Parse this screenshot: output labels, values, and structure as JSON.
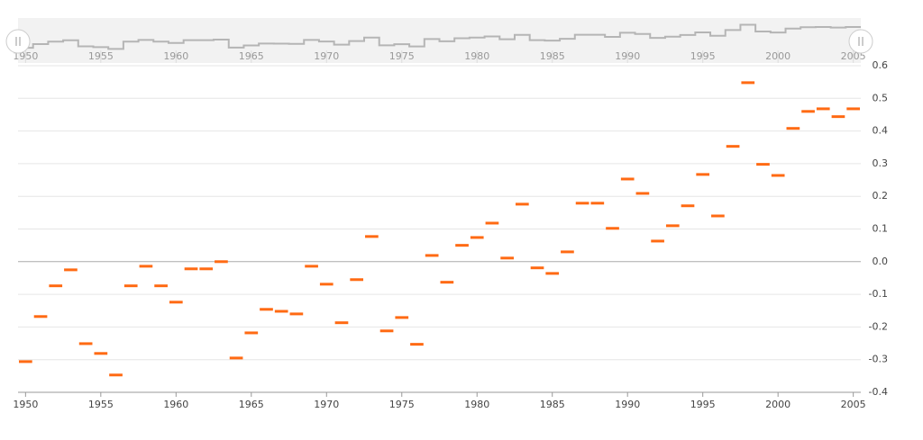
{
  "chart_data": {
    "type": "step-marker",
    "x": [
      1950,
      1951,
      1952,
      1953,
      1954,
      1955,
      1956,
      1957,
      1958,
      1959,
      1960,
      1961,
      1962,
      1963,
      1964,
      1965,
      1966,
      1967,
      1968,
      1969,
      1970,
      1971,
      1972,
      1973,
      1974,
      1975,
      1976,
      1977,
      1978,
      1979,
      1980,
      1981,
      1982,
      1983,
      1984,
      1985,
      1986,
      1987,
      1988,
      1989,
      1990,
      1991,
      1992,
      1993,
      1994,
      1995,
      1996,
      1997,
      1998,
      1999,
      2000,
      2001,
      2002,
      2003,
      2004,
      2005
    ],
    "values": [
      -0.306,
      -0.168,
      -0.074,
      -0.025,
      -0.251,
      -0.281,
      -0.347,
      -0.074,
      -0.014,
      -0.074,
      -0.124,
      -0.022,
      -0.022,
      0.0,
      -0.295,
      -0.218,
      -0.146,
      -0.152,
      -0.16,
      -0.014,
      -0.069,
      -0.187,
      -0.055,
      0.077,
      -0.212,
      -0.171,
      -0.253,
      0.019,
      -0.063,
      0.05,
      0.074,
      0.118,
      0.011,
      0.176,
      -0.019,
      -0.036,
      0.03,
      0.179,
      0.179,
      0.102,
      0.253,
      0.209,
      0.063,
      0.11,
      0.171,
      0.267,
      0.14,
      0.353,
      0.548,
      0.298,
      0.264,
      0.408,
      0.46,
      0.468,
      0.444,
      0.468
    ],
    "color": "#ff6a13",
    "xlim": [
      1949.5,
      2005.5
    ],
    "xticks": [
      1950,
      1955,
      1960,
      1965,
      1970,
      1975,
      1980,
      1985,
      1990,
      1995,
      2000,
      2005
    ],
    "ylim": [
      -0.4,
      0.6
    ],
    "yticks": [
      0.6,
      0.5,
      0.4,
      0.3,
      0.2,
      0.1,
      {
        "value": 0,
        "label": "0.0"
      },
      -0.1,
      -0.2,
      -0.3,
      -0.4
    ],
    "grid": true,
    "navigator": true
  }
}
